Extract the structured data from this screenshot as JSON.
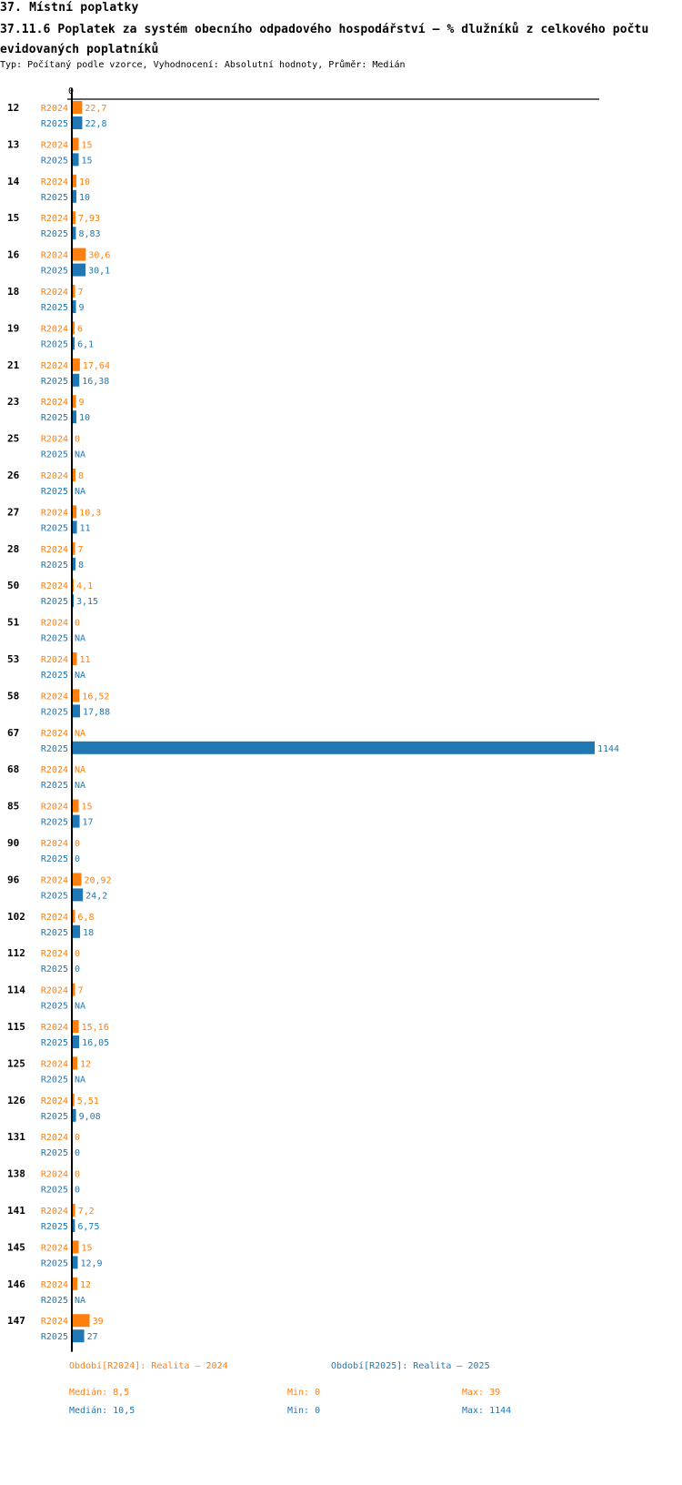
{
  "header": {
    "section": "37. Místní poplatky",
    "title": "37.11.6 Poplatek za systém obecního odpadového hospodářství  – % dlužníků z celkového počtu evidovaných poplatníků",
    "subtitle": "Typ: Počítaný podle vzorce, Vyhodnocení: Absolutní hodnoty, Průměr: Medián"
  },
  "colors": {
    "r2024": "#ff7f0e",
    "r2025": "#1f77b4"
  },
  "chart_data": {
    "type": "bar",
    "orientation": "horizontal",
    "axis_zero_label": "0",
    "xlim": [
      0,
      1144
    ],
    "categories": [
      "12",
      "13",
      "14",
      "15",
      "16",
      "18",
      "19",
      "21",
      "23",
      "25",
      "26",
      "27",
      "28",
      "50",
      "51",
      "53",
      "58",
      "67",
      "68",
      "85",
      "90",
      "96",
      "102",
      "112",
      "114",
      "115",
      "125",
      "126",
      "131",
      "138",
      "141",
      "145",
      "146",
      "147"
    ],
    "series": [
      {
        "name": "R2024",
        "values": [
          22.7,
          15,
          10,
          7.93,
          30.6,
          7,
          6,
          17.64,
          9,
          0,
          8,
          10.3,
          7,
          4.1,
          0,
          11,
          16.52,
          null,
          null,
          15,
          0,
          20.92,
          6.8,
          0,
          7,
          15.16,
          12,
          5.51,
          0,
          0,
          7.2,
          15,
          12,
          39
        ],
        "labels": [
          "22,7",
          "15",
          "10",
          "7,93",
          "30,6",
          "7",
          "6",
          "17,64",
          "9",
          "0",
          "8",
          "10,3",
          "7",
          "4,1",
          "0",
          "11",
          "16,52",
          "NA",
          "NA",
          "15",
          "0",
          "20,92",
          "6,8",
          "0",
          "7",
          "15,16",
          "12",
          "5,51",
          "0",
          "0",
          "7,2",
          "15",
          "12",
          "39"
        ]
      },
      {
        "name": "R2025",
        "values": [
          22.8,
          15,
          10,
          8.83,
          30.1,
          9,
          6.1,
          16.38,
          10,
          null,
          null,
          11,
          8,
          3.15,
          null,
          null,
          17.88,
          1144,
          null,
          17,
          0,
          24.2,
          18,
          0,
          null,
          16.05,
          null,
          9.08,
          0,
          0,
          6.75,
          12.9,
          null,
          27
        ],
        "labels": [
          "22,8",
          "15",
          "10",
          "8,83",
          "30,1",
          "9",
          "6,1",
          "16,38",
          "10",
          "NA",
          "NA",
          "11",
          "8",
          "3,15",
          "NA",
          "NA",
          "17,88",
          "1144",
          "NA",
          "17",
          "0",
          "24,2",
          "18",
          "0",
          "NA",
          "16,05",
          "NA",
          "9,08",
          "0",
          "0",
          "6,75",
          "12,9",
          "NA",
          "27"
        ]
      }
    ]
  },
  "footer": {
    "legend_2024": "Období[R2024]: Realita – 2024",
    "legend_2025": "Období[R2025]: Realita – 2025",
    "median_2024": "Medián: 8,5",
    "min_2024": "Min: 0",
    "max_2024": "Max: 39",
    "median_2025": "Medián: 10,5",
    "min_2025": "Min: 0",
    "max_2025": "Max: 1144"
  }
}
